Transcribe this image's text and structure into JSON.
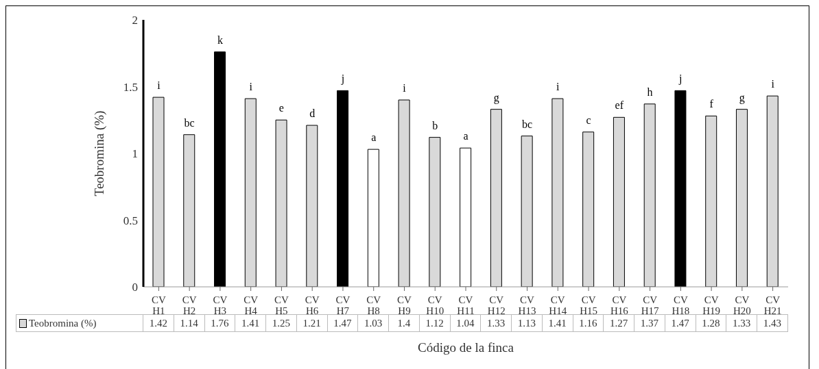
{
  "chart_data": {
    "type": "bar",
    "xlabel": "Código de la finca",
    "ylabel": "Teobromina (%)",
    "categories": [
      "CV H1",
      "CV H2",
      "CV H3",
      "CV H4",
      "CV H5",
      "CV H6",
      "CV H7",
      "CV H8",
      "CV H9",
      "CV H10",
      "CV H11",
      "CV H12",
      "CV H13",
      "CV H14",
      "CV H15",
      "CV H16",
      "CV H17",
      "CV H18",
      "CV H19",
      "CV H20",
      "CV H21"
    ],
    "series": [
      {
        "name": "Teobromina (%)",
        "color": "#d9d9d9",
        "values": [
          1.42,
          1.14,
          1.76,
          1.41,
          1.25,
          1.21,
          1.47,
          1.03,
          1.4,
          1.12,
          1.04,
          1.33,
          1.13,
          1.41,
          1.16,
          1.27,
          1.37,
          1.47,
          1.28,
          1.33,
          1.43
        ],
        "colors": [
          "#d9d9d9",
          "#d9d9d9",
          "#000000",
          "#d9d9d9",
          "#d9d9d9",
          "#d9d9d9",
          "#000000",
          "#ffffff",
          "#d9d9d9",
          "#d9d9d9",
          "#ffffff",
          "#d9d9d9",
          "#d9d9d9",
          "#d9d9d9",
          "#d9d9d9",
          "#d9d9d9",
          "#d9d9d9",
          "#000000",
          "#d9d9d9",
          "#d9d9d9",
          "#d9d9d9"
        ]
      }
    ],
    "ylim": [
      0,
      2
    ],
    "yticks": [
      0,
      0.5,
      1,
      1.5,
      2
    ],
    "grid": false,
    "legend": "bottom",
    "data_labels": true,
    "annotations": [
      {
        "text": "i",
        "x": "CV H1",
        "y": 1.42
      },
      {
        "text": "bc",
        "x": "CV H2",
        "y": 1.14
      },
      {
        "text": "k",
        "x": "CV H3",
        "y": 1.76
      },
      {
        "text": "i",
        "x": "CV H4",
        "y": 1.41
      },
      {
        "text": "e",
        "x": "CV H5",
        "y": 1.25
      },
      {
        "text": "d",
        "x": "CV H6",
        "y": 1.21
      },
      {
        "text": "j",
        "x": "CV H7",
        "y": 1.47
      },
      {
        "text": "a",
        "x": "CV H8",
        "y": 1.03
      },
      {
        "text": "i",
        "x": "CV H9",
        "y": 1.4
      },
      {
        "text": "b",
        "x": "CV H10",
        "y": 1.12
      },
      {
        "text": "a",
        "x": "CV H11",
        "y": 1.04
      },
      {
        "text": "g",
        "x": "CV H12",
        "y": 1.33
      },
      {
        "text": "bc",
        "x": "CV H13",
        "y": 1.13
      },
      {
        "text": "i",
        "x": "CV H14",
        "y": 1.41
      },
      {
        "text": "c",
        "x": "CV H15",
        "y": 1.16
      },
      {
        "text": "ef",
        "x": "CV H16",
        "y": 1.27
      },
      {
        "text": "h",
        "x": "CV H17",
        "y": 1.37
      },
      {
        "text": "j",
        "x": "CV H18",
        "y": 1.47
      },
      {
        "text": "f",
        "x": "CV H19",
        "y": 1.28
      },
      {
        "text": "g",
        "x": "CV H20",
        "y": 1.33
      },
      {
        "text": "i",
        "x": "CV H21",
        "y": 1.43
      }
    ]
  }
}
